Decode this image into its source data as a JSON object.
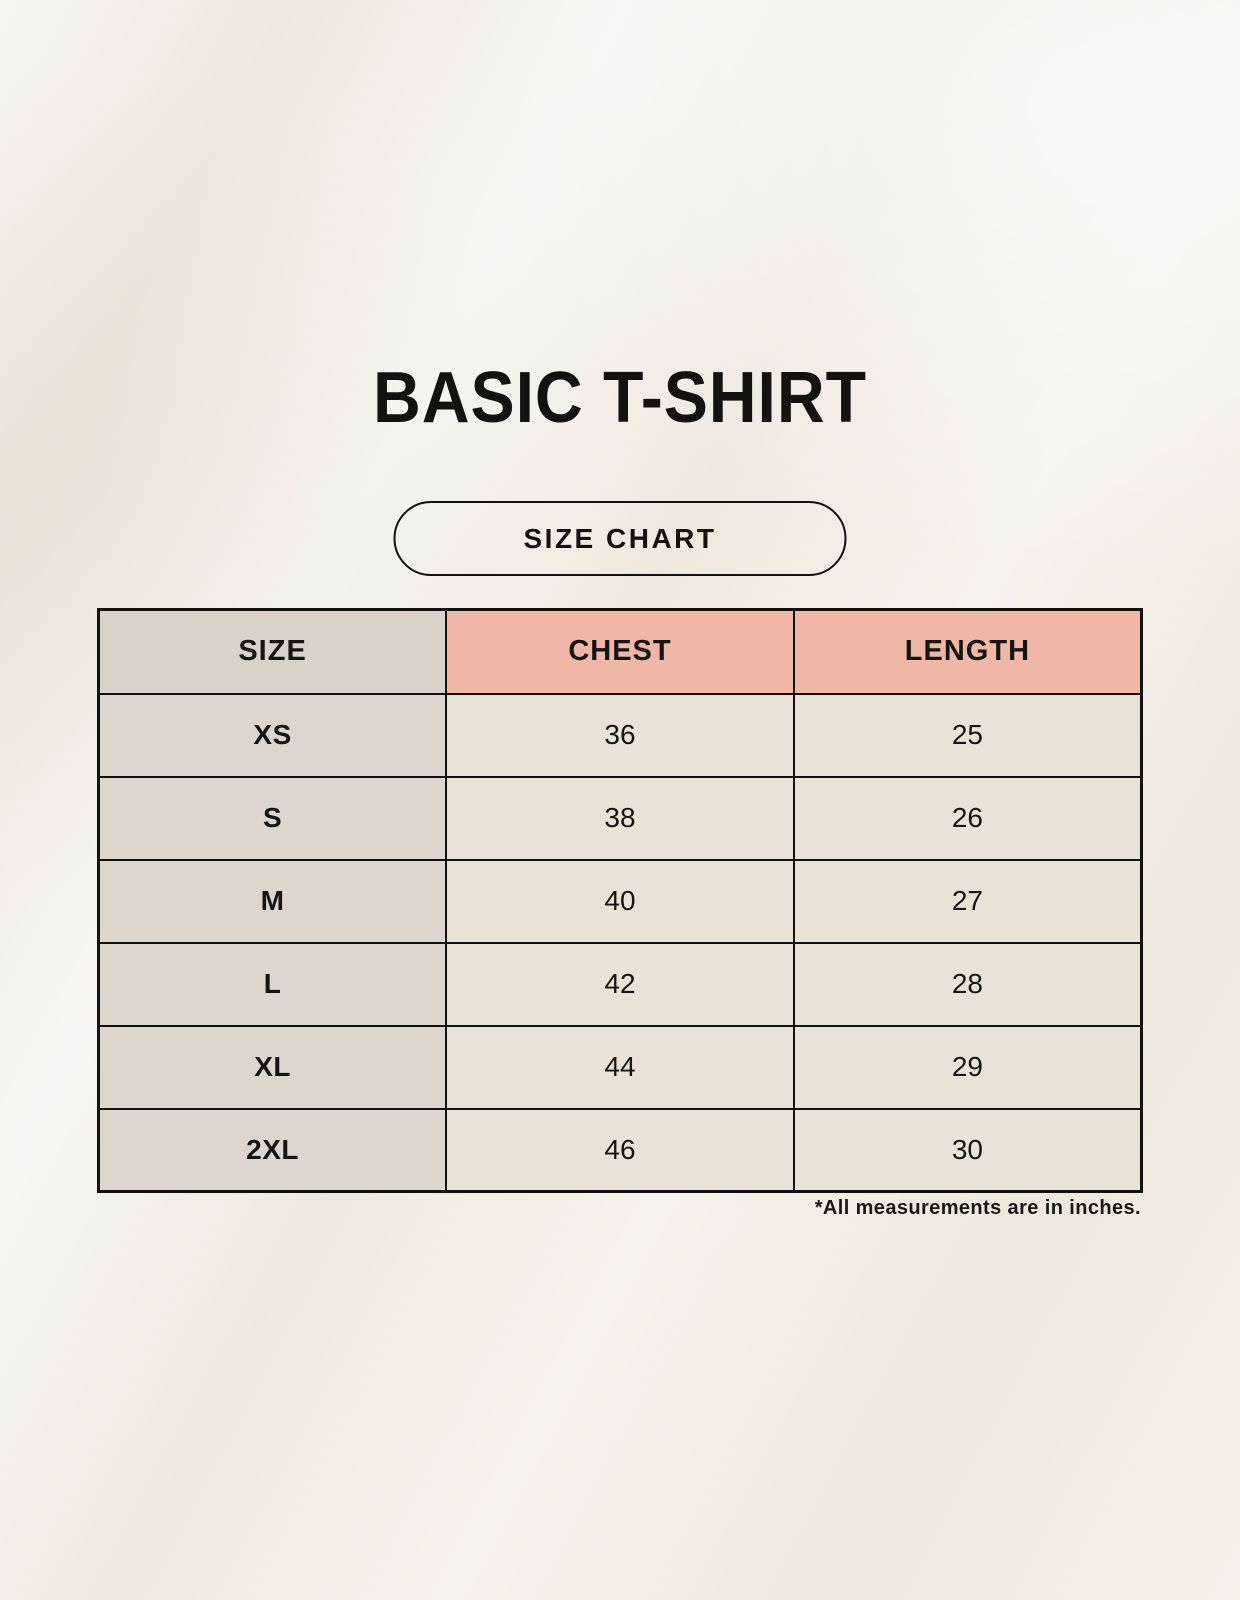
{
  "header": {
    "title": "BASIC T-SHIRT",
    "button_label": "SIZE CHART"
  },
  "chart_data": {
    "type": "table",
    "title": "BASIC T-SHIRT",
    "subtitle": "SIZE CHART",
    "columns": [
      "SIZE",
      "CHEST",
      "LENGTH"
    ],
    "rows": [
      [
        "XS",
        "36",
        "25"
      ],
      [
        "S",
        "38",
        "26"
      ],
      [
        "M",
        "40",
        "27"
      ],
      [
        "L",
        "42",
        "28"
      ],
      [
        "XL",
        "44",
        "29"
      ],
      [
        "2XL",
        "46",
        "30"
      ]
    ],
    "units_note": "*All measurements are in inches.",
    "layout": {
      "columns_equal_width": true,
      "header_highlight_columns": [
        "CHEST",
        "LENGTH"
      ]
    }
  },
  "colors": {
    "page_background": "#f1ece3",
    "header_size_bg": "#d8d2ca",
    "header_measure_bg": "#f0b6a6",
    "body_size_bg": "#dcd6ce",
    "body_data_bg": "#e9e2d7",
    "border": "#14120f",
    "text": "#171513"
  }
}
